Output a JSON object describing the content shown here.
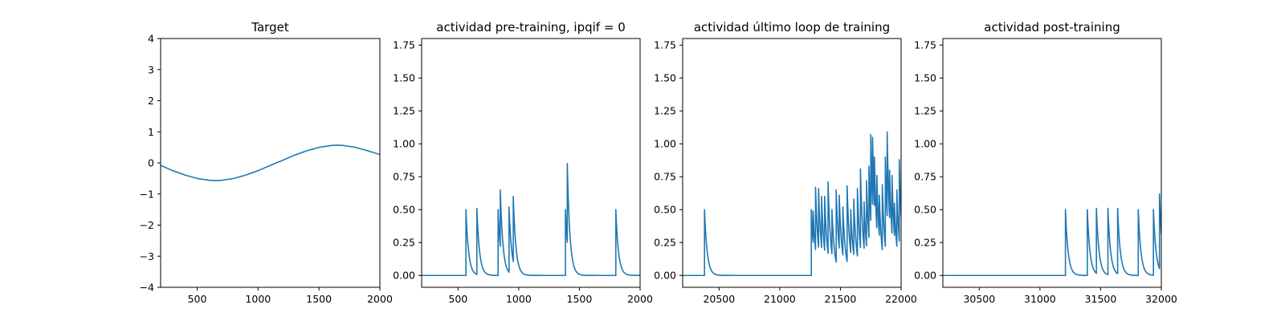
{
  "colors": {
    "series": "#1f77b4"
  },
  "chart_data": [
    {
      "type": "line",
      "title": "Target",
      "xlabel": "",
      "ylabel": "",
      "xlim": [
        200,
        2000
      ],
      "ylim": [
        -4,
        4
      ],
      "xticks": [
        500,
        1000,
        1500,
        2000
      ],
      "xtick_labels": [
        "500",
        "1000",
        "1500",
        "2000"
      ],
      "yticks": [
        -4,
        -3,
        -2,
        -1,
        0,
        1,
        2,
        3,
        4
      ],
      "ytick_labels": [
        "−4",
        "−3",
        "−2",
        "−1",
        "0",
        "1",
        "2",
        "3",
        "4"
      ],
      "series": [
        {
          "name": "target",
          "x": [
            200,
            300,
            400,
            500,
            600,
            650,
            700,
            800,
            900,
            1000,
            1100,
            1200,
            1300,
            1400,
            1500,
            1600,
            1650,
            1700,
            1800,
            1900,
            2000
          ],
          "y": [
            -0.08,
            -0.25,
            -0.39,
            -0.5,
            -0.56,
            -0.57,
            -0.56,
            -0.5,
            -0.39,
            -0.25,
            -0.08,
            0.08,
            0.25,
            0.39,
            0.5,
            0.56,
            0.57,
            0.56,
            0.5,
            0.39,
            0.27
          ]
        }
      ]
    },
    {
      "type": "line",
      "title": "actividad pre-training, ipqif = 0",
      "xlabel": "",
      "ylabel": "",
      "xlim": [
        200,
        2000
      ],
      "ylim": [
        -0.09,
        1.8
      ],
      "xticks": [
        500,
        1000,
        1500,
        2000
      ],
      "xtick_labels": [
        "500",
        "1000",
        "1500",
        "2000"
      ],
      "yticks": [
        0,
        0.25,
        0.5,
        0.75,
        1.0,
        1.25,
        1.5,
        1.75
      ],
      "ytick_labels": [
        "0.00",
        "0.25",
        "0.50",
        "0.75",
        "1.00",
        "1.25",
        "1.50",
        "1.75"
      ],
      "spikes": [
        {
          "t": 565,
          "peak": 0.5
        },
        {
          "t": 655,
          "peak": 0.51
        },
        {
          "t": 830,
          "peak": 0.5
        },
        {
          "t": 848,
          "peak": 0.65
        },
        {
          "t": 920,
          "peak": 0.52
        },
        {
          "t": 955,
          "peak": 0.6
        },
        {
          "t": 1385,
          "peak": 0.5
        },
        {
          "t": 1400,
          "peak": 0.85
        },
        {
          "t": 1800,
          "peak": 0.5
        }
      ],
      "decay": 22
    },
    {
      "type": "line",
      "title": "actividad último loop de training",
      "xlabel": "",
      "ylabel": "",
      "xlim": [
        20200,
        22000
      ],
      "ylim": [
        -0.09,
        1.8
      ],
      "xticks": [
        20500,
        21000,
        21500,
        22000
      ],
      "xtick_labels": [
        "20500",
        "21000",
        "21500",
        "22000"
      ],
      "yticks": [
        0,
        0.25,
        0.5,
        0.75,
        1.0,
        1.25,
        1.5,
        1.75
      ],
      "ytick_labels": [
        "0.00",
        "0.25",
        "0.50",
        "0.75",
        "1.00",
        "1.25",
        "1.50",
        "1.75"
      ],
      "spikes": [
        {
          "t": 20380,
          "peak": 0.5
        },
        {
          "t": 21260,
          "peak": 0.5
        },
        {
          "t": 21275,
          "peak": 0.49
        },
        {
          "t": 21295,
          "peak": 0.67
        },
        {
          "t": 21320,
          "peak": 0.66
        },
        {
          "t": 21345,
          "peak": 0.6
        },
        {
          "t": 21370,
          "peak": 0.6
        },
        {
          "t": 21398,
          "peak": 0.71
        },
        {
          "t": 21430,
          "peak": 0.5
        },
        {
          "t": 21465,
          "peak": 0.65
        },
        {
          "t": 21490,
          "peak": 0.61
        },
        {
          "t": 21520,
          "peak": 0.52
        },
        {
          "t": 21555,
          "peak": 0.68
        },
        {
          "t": 21585,
          "peak": 0.5
        },
        {
          "t": 21610,
          "peak": 0.58
        },
        {
          "t": 21640,
          "peak": 0.66
        },
        {
          "t": 21665,
          "peak": 0.81
        },
        {
          "t": 21695,
          "peak": 0.56
        },
        {
          "t": 21715,
          "peak": 0.72
        },
        {
          "t": 21735,
          "peak": 0.83
        },
        {
          "t": 21750,
          "peak": 1.07
        },
        {
          "t": 21765,
          "peak": 1.05
        },
        {
          "t": 21780,
          "peak": 0.9
        },
        {
          "t": 21800,
          "peak": 0.76
        },
        {
          "t": 21820,
          "peak": 0.61
        },
        {
          "t": 21845,
          "peak": 0.69
        },
        {
          "t": 21870,
          "peak": 0.9
        },
        {
          "t": 21885,
          "peak": 1.09
        },
        {
          "t": 21905,
          "peak": 0.8
        },
        {
          "t": 21925,
          "peak": 0.76
        },
        {
          "t": 21945,
          "peak": 0.55
        },
        {
          "t": 21965,
          "peak": 0.65
        },
        {
          "t": 21985,
          "peak": 0.88
        }
      ],
      "decay": 22
    },
    {
      "type": "line",
      "title": "actividad post-training",
      "xlabel": "",
      "ylabel": "",
      "xlim": [
        30200,
        32000
      ],
      "ylim": [
        -0.09,
        1.8
      ],
      "xticks": [
        30500,
        31000,
        31500,
        32000
      ],
      "xtick_labels": [
        "30500",
        "31000",
        "31500",
        "32000"
      ],
      "yticks": [
        0,
        0.25,
        0.5,
        0.75,
        1.0,
        1.25,
        1.5,
        1.75
      ],
      "ytick_labels": [
        "0.00",
        "0.25",
        "0.50",
        "0.75",
        "1.00",
        "1.25",
        "1.50",
        "1.75"
      ],
      "spikes": [
        {
          "t": 31210,
          "peak": 0.5
        },
        {
          "t": 31390,
          "peak": 0.5
        },
        {
          "t": 31465,
          "peak": 0.51
        },
        {
          "t": 31560,
          "peak": 0.51
        },
        {
          "t": 31640,
          "peak": 0.51
        },
        {
          "t": 31810,
          "peak": 0.5
        },
        {
          "t": 31935,
          "peak": 0.5
        },
        {
          "t": 31985,
          "peak": 0.62
        }
      ],
      "decay": 22
    }
  ]
}
